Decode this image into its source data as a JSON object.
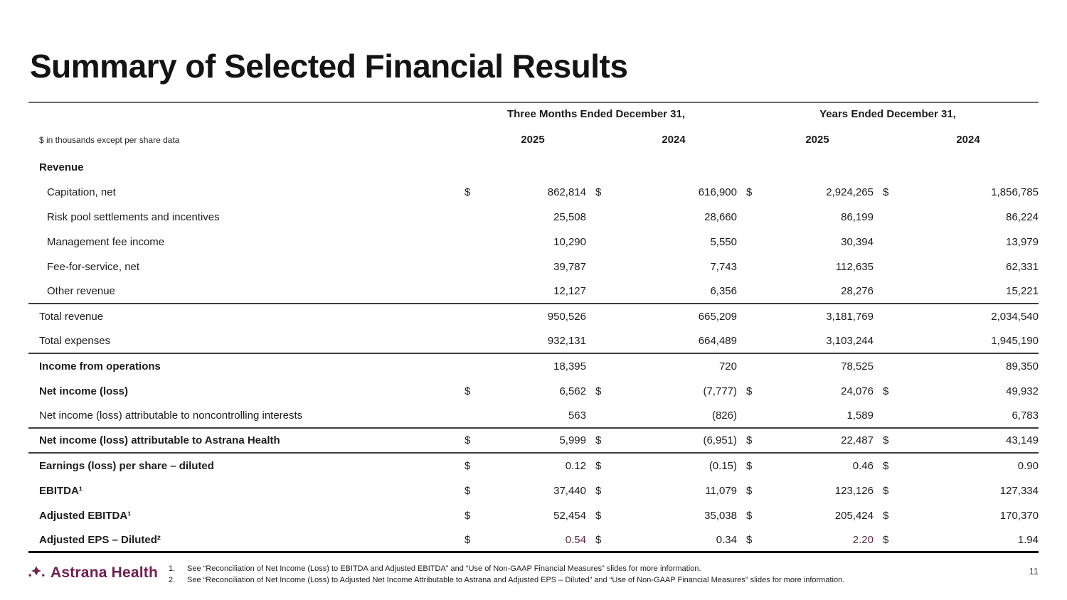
{
  "title": "Summary of Selected Financial Results",
  "colors": {
    "brand_maroon": "#702150",
    "accent_value": "#5b2c40",
    "rule_dark": "#3d3d3d",
    "title_rule_gray": "#6a6a6a"
  },
  "table": {
    "note": "$ in thousands except per share data",
    "col_groups": [
      "Three Months Ended December 31,",
      "Years Ended December 31,"
    ],
    "years": [
      "2025",
      "2024",
      "2025",
      "2024"
    ],
    "rows": [
      {
        "label": "Revenue",
        "type": "section"
      },
      {
        "label": "Capitation, net",
        "type": "item",
        "cells": [
          {
            "c": "$",
            "v": "862,814"
          },
          {
            "c": "$",
            "v": "616,900"
          },
          {
            "c": "$",
            "v": "2,924,265"
          },
          {
            "c": "$",
            "v": "1,856,785"
          }
        ]
      },
      {
        "label": "Risk pool settlements and incentives",
        "type": "item",
        "cells": [
          {
            "v": "25,508"
          },
          {
            "v": "28,660"
          },
          {
            "v": "86,199"
          },
          {
            "v": "86,224"
          }
        ]
      },
      {
        "label": "Management fee income",
        "type": "item",
        "cells": [
          {
            "v": "10,290"
          },
          {
            "v": "5,550"
          },
          {
            "v": "30,394"
          },
          {
            "v": "13,979"
          }
        ]
      },
      {
        "label": "Fee-for-service, net",
        "type": "item",
        "cells": [
          {
            "v": "39,787"
          },
          {
            "v": "7,743"
          },
          {
            "v": "112,635"
          },
          {
            "v": "62,331"
          }
        ]
      },
      {
        "label": "Other revenue",
        "type": "item",
        "rule_bottom": "thin",
        "cells": [
          {
            "v": "12,127"
          },
          {
            "v": "6,356"
          },
          {
            "v": "28,276"
          },
          {
            "v": "15,221"
          }
        ]
      },
      {
        "label": "Total revenue",
        "type": "plain",
        "cells": [
          {
            "v": "950,526"
          },
          {
            "v": "665,209"
          },
          {
            "v": "3,181,769"
          },
          {
            "v": "2,034,540"
          }
        ]
      },
      {
        "label": "Total expenses",
        "type": "plain",
        "rule_bottom": "thin",
        "cells": [
          {
            "v": "932,131"
          },
          {
            "v": "664,489"
          },
          {
            "v": "3,103,244"
          },
          {
            "v": "1,945,190"
          }
        ]
      },
      {
        "label": "Income from operations",
        "type": "bold",
        "cells": [
          {
            "v": "18,395"
          },
          {
            "v": "720"
          },
          {
            "v": "78,525"
          },
          {
            "v": "89,350"
          }
        ]
      },
      {
        "label": "Net income (loss)",
        "type": "bold",
        "cells": [
          {
            "c": "$",
            "v": "6,562"
          },
          {
            "c": "$",
            "v": "(7,777)"
          },
          {
            "c": "$",
            "v": "24,076"
          },
          {
            "c": "$",
            "v": "49,932"
          }
        ]
      },
      {
        "label": "Net income (loss) attributable to noncontrolling interests",
        "type": "plain",
        "rule_bottom": "thin",
        "cells": [
          {
            "v": "563"
          },
          {
            "v": "(826)"
          },
          {
            "v": "1,589"
          },
          {
            "v": "6,783"
          }
        ]
      },
      {
        "label": "Net income (loss) attributable to Astrana Health",
        "type": "bold",
        "rule_bottom": "thin",
        "cells": [
          {
            "c": "$",
            "v": "5,999"
          },
          {
            "c": "$",
            "v": "(6,951)"
          },
          {
            "c": "$",
            "v": "22,487"
          },
          {
            "c": "$",
            "v": "43,149"
          }
        ]
      },
      {
        "label": "Earnings (loss) per share – diluted",
        "type": "bold",
        "cells": [
          {
            "c": "$",
            "v": "0.12"
          },
          {
            "c": "$",
            "v": "(0.15)"
          },
          {
            "c": "$",
            "v": "0.46"
          },
          {
            "c": "$",
            "v": "0.90"
          }
        ]
      },
      {
        "label": "EBITDA¹",
        "type": "bold",
        "cells": [
          {
            "c": "$",
            "v": "37,440"
          },
          {
            "c": "$",
            "v": "11,079"
          },
          {
            "c": "$",
            "v": "123,126"
          },
          {
            "c": "$",
            "v": "127,334"
          }
        ]
      },
      {
        "label": "Adjusted EBITDA¹",
        "type": "bold",
        "cells": [
          {
            "c": "$",
            "v": "52,454"
          },
          {
            "c": "$",
            "v": "35,038"
          },
          {
            "c": "$",
            "v": "205,424"
          },
          {
            "c": "$",
            "v": "170,370"
          }
        ]
      },
      {
        "label": "Adjusted EPS – Diluted²",
        "type": "bold",
        "rule_bottom": "thick",
        "cells": [
          {
            "c": "$",
            "v": "0.54",
            "a": true
          },
          {
            "c": "$",
            "v": "0.34"
          },
          {
            "c": "$",
            "v": "2.20",
            "a": true
          },
          {
            "c": "$",
            "v": "1.94"
          }
        ]
      }
    ]
  },
  "footer": {
    "logo_text": "Astrana Health",
    "footnotes": [
      {
        "num": "1.",
        "text": "See “Reconciliation of Net Income (Loss) to EBITDA and Adjusted EBITDA” and “Use of Non-GAAP Financial Measures” slides for more information."
      },
      {
        "num": "2.",
        "text": "See “Reconciliation of Net Income (Loss) to Adjusted Net Income Attributable to Astrana and Adjusted EPS – Diluted” and “Use of Non-GAAP Financial Measures” slides for more information."
      }
    ],
    "page_number": "11"
  }
}
